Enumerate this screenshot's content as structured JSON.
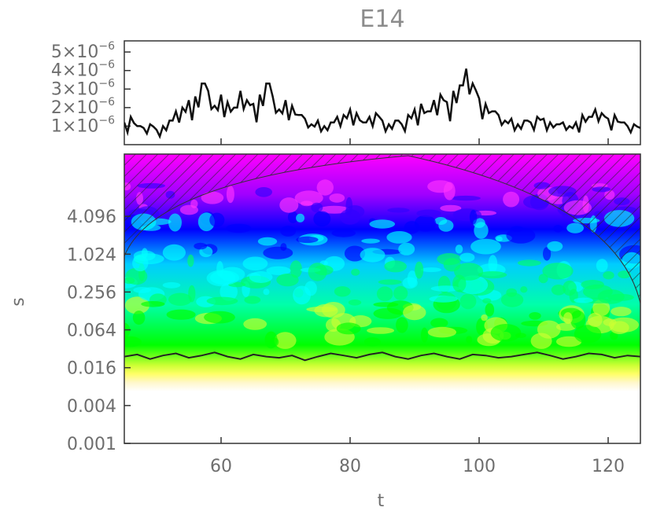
{
  "chart_data": [
    {
      "type": "line",
      "title": "E14",
      "xlabel": "",
      "ylabel": "",
      "xlim": [
        45,
        125
      ],
      "ylim": [
        0,
        5.6e-06
      ],
      "y_tick_labels": [
        {
          "value": 1e-06,
          "mantissa": "1×10",
          "exp": "−6"
        },
        {
          "value": 2e-06,
          "mantissa": "2×10",
          "exp": "−6"
        },
        {
          "value": 3e-06,
          "mantissa": "3×10",
          "exp": "−6"
        },
        {
          "value": 4e-06,
          "mantissa": "4×10",
          "exp": "−6"
        },
        {
          "value": 5e-06,
          "mantissa": "5×10",
          "exp": "−6"
        }
      ],
      "series": [
        {
          "x": [
            45,
            46,
            47,
            48,
            49,
            50,
            51,
            52,
            53,
            54,
            55,
            56,
            57,
            58,
            59,
            60,
            61,
            62,
            63,
            64,
            65,
            66,
            67,
            68,
            69,
            70,
            71,
            72,
            73,
            74,
            75,
            76,
            77,
            78,
            79,
            80,
            81,
            82,
            83,
            84,
            85,
            86,
            87,
            88,
            89,
            90,
            91,
            92,
            93,
            94,
            95,
            96,
            97,
            98,
            99,
            100,
            101,
            102,
            103,
            104,
            105,
            106,
            107,
            108,
            109,
            110,
            111,
            112,
            113,
            114,
            115,
            116,
            117,
            118,
            119,
            120,
            121,
            122,
            123,
            124,
            125
          ],
          "y": [
            1.2e-06,
            1.5e-06,
            1e-06,
            9e-07,
            1.1e-06,
            8e-07,
            1e-06,
            1.3e-06,
            1.8e-06,
            2e-06,
            2.4e-06,
            2.6e-06,
            3.3e-06,
            2.9e-06,
            2.1e-06,
            2.7e-06,
            2.3e-06,
            2e-06,
            2.9e-06,
            2.4e-06,
            2.2e-06,
            2.7e-06,
            3.3e-06,
            2.6e-06,
            1.9e-06,
            2.4e-06,
            2.1e-06,
            1.6e-06,
            1.4e-06,
            1.1e-06,
            1.3e-06,
            1e-06,
            1.2e-06,
            1.5e-06,
            1.6e-06,
            1.9e-06,
            1.7e-06,
            1.2e-06,
            1.5e-06,
            1.7e-06,
            1.3e-06,
            1.1e-06,
            1.3e-06,
            1.1e-06,
            1.6e-06,
            1.9e-06,
            2.2e-06,
            1.8e-06,
            2.4e-06,
            2.7e-06,
            2.3e-06,
            2.9e-06,
            3.2e-06,
            4.1e-06,
            3.3e-06,
            2.5e-06,
            2.2e-06,
            1.8e-06,
            1.6e-06,
            1.3e-06,
            1.4e-06,
            1.1e-06,
            1.3e-06,
            1.2e-06,
            1.5e-06,
            1.4e-06,
            1.2e-06,
            1.1e-06,
            1.2e-06,
            1e-06,
            1.2e-06,
            1.6e-06,
            1.5e-06,
            1.9e-06,
            1.7e-06,
            1.4e-06,
            1.6e-06,
            1.2e-06,
            1e-06,
            1.1e-06,
            9e-07
          ]
        }
      ]
    },
    {
      "type": "heatmap",
      "title": "",
      "xlabel": "t",
      "ylabel": "s",
      "xlim": [
        45,
        125
      ],
      "x_ticks": [
        60,
        80,
        100,
        120
      ],
      "y_scale": "log",
      "ylim": [
        0.001,
        40
      ],
      "y_ticks": [
        0.001,
        0.004,
        0.016,
        0.064,
        0.256,
        1.024,
        4.096
      ],
      "y_tick_labels": [
        "0.001",
        "0.004",
        "0.016",
        "0.064",
        "0.256",
        "1.024",
        "4.096"
      ],
      "colormap": [
        "#ff00ff",
        "#0000ff",
        "#00ffff",
        "#00ff00",
        "#ffff00"
      ],
      "cone_of_influence": "hatched",
      "contour_line_y": [
        0.024,
        0.026,
        0.022,
        0.025,
        0.027,
        0.023,
        0.025,
        0.028,
        0.024,
        0.022,
        0.026,
        0.024,
        0.023,
        0.025,
        0.021,
        0.024,
        0.027,
        0.025,
        0.023,
        0.026,
        0.028,
        0.024,
        0.022,
        0.025,
        0.027,
        0.024,
        0.022,
        0.026,
        0.025,
        0.023,
        0.024,
        0.026,
        0.028,
        0.025,
        0.022,
        0.024,
        0.027,
        0.026,
        0.023,
        0.025,
        0.024
      ]
    }
  ]
}
